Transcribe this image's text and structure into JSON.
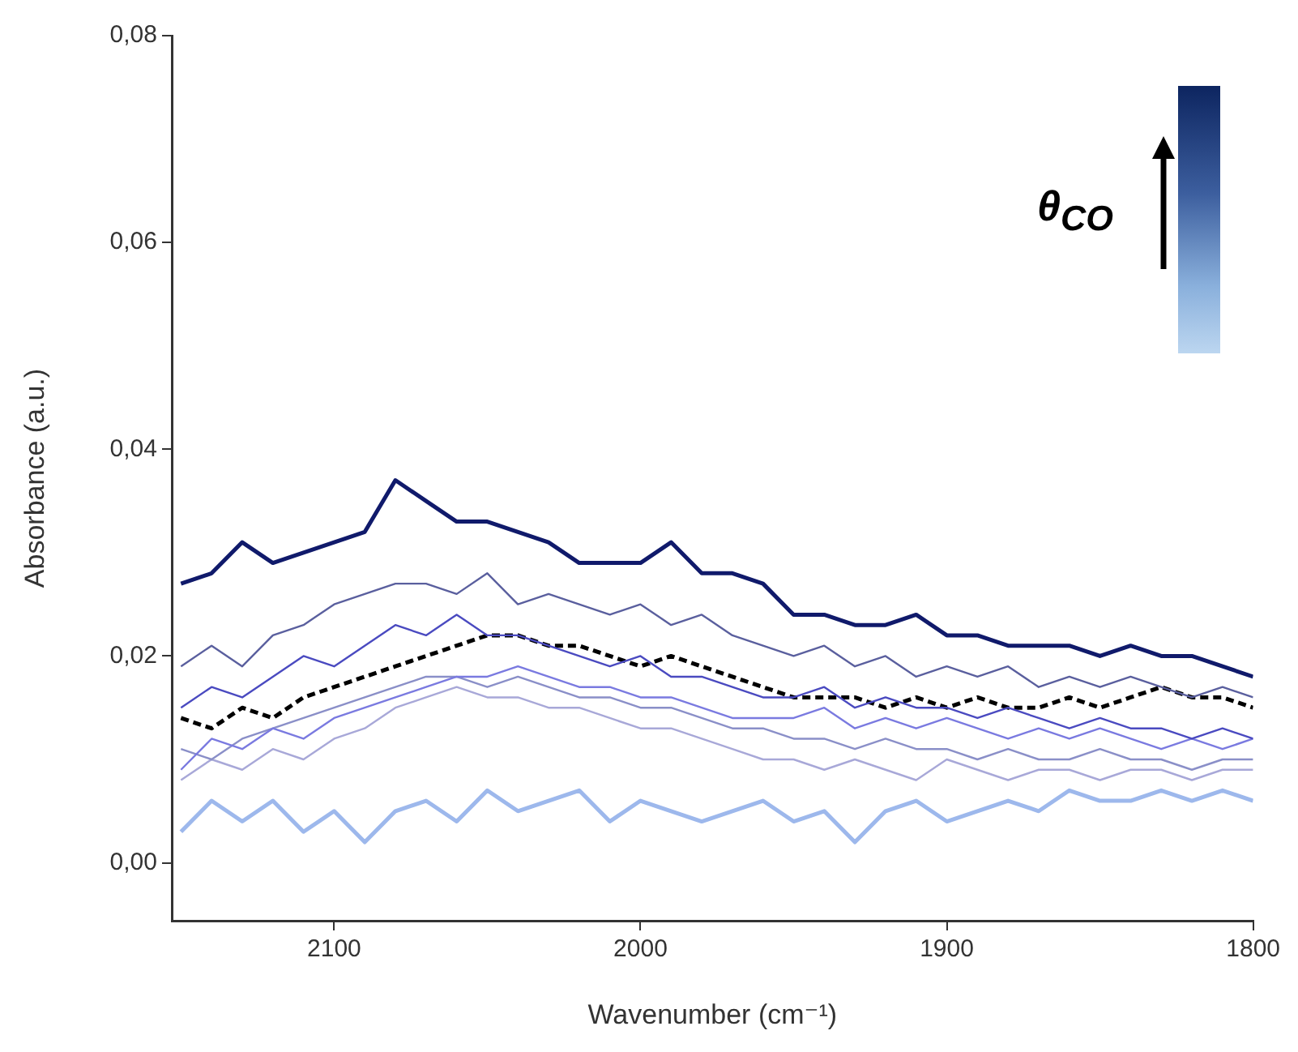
{
  "chart_data": {
    "type": "line",
    "xlabel": "Wavenumber (cm⁻¹)",
    "ylabel": "Absorbance (a.u.)",
    "legend_title": "θ$_{CO}$",
    "x": [
      2150,
      2140,
      2130,
      2120,
      2110,
      2100,
      2090,
      2080,
      2070,
      2060,
      2050,
      2040,
      2030,
      2020,
      2010,
      2000,
      1990,
      1980,
      1970,
      1960,
      1950,
      1940,
      1930,
      1920,
      1910,
      1900,
      1890,
      1880,
      1870,
      1860,
      1850,
      1840,
      1830,
      1820,
      1810,
      1800
    ],
    "xlim": [
      2153,
      1800
    ],
    "xticks": [
      2100,
      2000,
      1900,
      1800
    ],
    "ylim": [
      -0.0056,
      0.08
    ],
    "yticks": [
      {
        "value": 0,
        "label": "0,00"
      },
      {
        "value": 0.02,
        "label": "0,02"
      },
      {
        "value": 0.04,
        "label": "0,04"
      },
      {
        "value": 0.06,
        "label": "0,06"
      },
      {
        "value": 0.08,
        "label": "0,08"
      }
    ],
    "series": [
      {
        "color": "#101a6b",
        "values": [
          0.027,
          0.028,
          0.031,
          0.029,
          0.03,
          0.031,
          0.032,
          0.037,
          0.035,
          0.033,
          0.033,
          0.032,
          0.031,
          0.029,
          0.029,
          0.029,
          0.031,
          0.028,
          0.028,
          0.027,
          0.024,
          0.024,
          0.023,
          0.023,
          0.024,
          0.022,
          0.022,
          0.021,
          0.021,
          0.021,
          0.02,
          0.021,
          0.02,
          0.02,
          0.019,
          0.018
        ]
      },
      {
        "color": "#5a5f9e",
        "values": [
          0.019,
          0.021,
          0.019,
          0.022,
          0.023,
          0.025,
          0.026,
          0.027,
          0.027,
          0.026,
          0.028,
          0.025,
          0.026,
          0.025,
          0.024,
          0.025,
          0.023,
          0.024,
          0.022,
          0.021,
          0.02,
          0.021,
          0.019,
          0.02,
          0.018,
          0.019,
          0.018,
          0.019,
          0.017,
          0.018,
          0.017,
          0.018,
          0.017,
          0.016,
          0.017,
          0.016
        ]
      },
      {
        "color": "#4a4ac0",
        "values": [
          0.015,
          0.017,
          0.016,
          0.018,
          0.02,
          0.019,
          0.021,
          0.023,
          0.022,
          0.024,
          0.022,
          0.022,
          0.021,
          0.02,
          0.019,
          0.02,
          0.018,
          0.018,
          0.017,
          0.016,
          0.016,
          0.017,
          0.015,
          0.016,
          0.015,
          0.015,
          0.014,
          0.015,
          0.014,
          0.013,
          0.014,
          0.013,
          0.013,
          0.012,
          0.013,
          0.012
        ]
      },
      {
        "color": "#000000",
        "line_style": "dashed",
        "values": [
          0.014,
          0.013,
          0.015,
          0.014,
          0.016,
          0.017,
          0.018,
          0.019,
          0.02,
          0.021,
          0.022,
          0.022,
          0.021,
          0.021,
          0.02,
          0.019,
          0.02,
          0.019,
          0.018,
          0.017,
          0.016,
          0.016,
          0.016,
          0.015,
          0.016,
          0.015,
          0.016,
          0.015,
          0.015,
          0.016,
          0.015,
          0.016,
          0.017,
          0.016,
          0.016,
          0.015
        ]
      },
      {
        "color": "#7a7ae0",
        "values": [
          0.009,
          0.012,
          0.011,
          0.013,
          0.012,
          0.014,
          0.015,
          0.016,
          0.017,
          0.018,
          0.018,
          0.019,
          0.018,
          0.017,
          0.017,
          0.016,
          0.016,
          0.015,
          0.014,
          0.014,
          0.014,
          0.015,
          0.013,
          0.014,
          0.013,
          0.014,
          0.013,
          0.012,
          0.013,
          0.012,
          0.013,
          0.012,
          0.011,
          0.012,
          0.011,
          0.012
        ]
      },
      {
        "color": "#8a8fc8",
        "values": [
          0.011,
          0.01,
          0.012,
          0.013,
          0.014,
          0.015,
          0.016,
          0.017,
          0.018,
          0.018,
          0.017,
          0.018,
          0.017,
          0.016,
          0.016,
          0.015,
          0.015,
          0.014,
          0.013,
          0.013,
          0.012,
          0.012,
          0.011,
          0.012,
          0.011,
          0.011,
          0.01,
          0.011,
          0.01,
          0.01,
          0.011,
          0.01,
          0.01,
          0.009,
          0.01,
          0.01
        ]
      },
      {
        "color": "#a8a8d8",
        "values": [
          0.008,
          0.01,
          0.009,
          0.011,
          0.01,
          0.012,
          0.013,
          0.015,
          0.016,
          0.017,
          0.016,
          0.016,
          0.015,
          0.015,
          0.014,
          0.013,
          0.013,
          0.012,
          0.011,
          0.01,
          0.01,
          0.009,
          0.01,
          0.009,
          0.008,
          0.01,
          0.009,
          0.008,
          0.009,
          0.009,
          0.008,
          0.009,
          0.009,
          0.008,
          0.009,
          0.009
        ]
      },
      {
        "color": "#9db8ec",
        "values": [
          0.003,
          0.006,
          0.004,
          0.006,
          0.003,
          0.005,
          0.002,
          0.005,
          0.006,
          0.004,
          0.007,
          0.005,
          0.006,
          0.007,
          0.004,
          0.006,
          0.005,
          0.004,
          0.005,
          0.006,
          0.004,
          0.005,
          0.002,
          0.005,
          0.006,
          0.004,
          0.005,
          0.006,
          0.005,
          0.007,
          0.006,
          0.006,
          0.007,
          0.006,
          0.007,
          0.006
        ]
      }
    ]
  }
}
